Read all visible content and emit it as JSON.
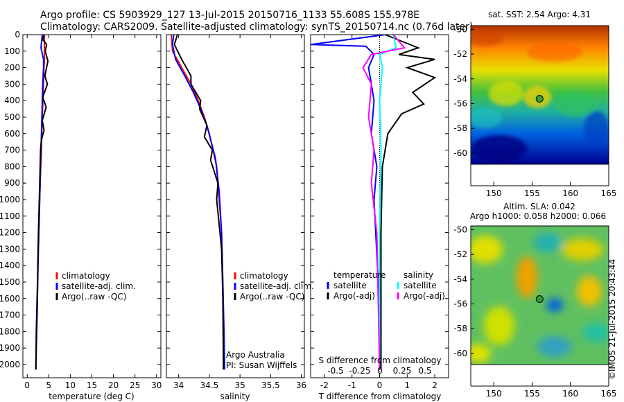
{
  "header": {
    "line1": "Argo profile: CS 5903929_127 13-Jul-2015 20150716_1133 55.608S 155.978E",
    "line2": "Climatology: CARS2009. Satellite-adjusted climatology: synTS_20150714.nc (0.76d later)"
  },
  "credit": "©IMOS 21-Jul-2015 20:43:44",
  "colors": {
    "climatology": "#ff0000",
    "satellite": "#0000ff",
    "argo": "#000000",
    "salinity_sat": "#00ffff",
    "salinity_argo": "#ff00ff"
  },
  "chart_data": [
    {
      "type": "line",
      "xlabel": "temperature (deg C)",
      "ylabel": "",
      "xlim": [
        -1,
        31
      ],
      "ylim": [
        2080,
        0
      ],
      "xticks": [
        0,
        5,
        10,
        15,
        20,
        25,
        30
      ],
      "yticks": [
        0,
        100,
        200,
        300,
        400,
        500,
        600,
        700,
        800,
        900,
        1000,
        1100,
        1200,
        1300,
        1400,
        1500,
        1600,
        1700,
        1800,
        1900,
        2000
      ],
      "legend": [
        "climatology",
        "satellite-adj. clim.",
        "Argo(..raw -QC)"
      ],
      "series": [
        {
          "name": "climatology",
          "color": "#ff0000",
          "x": [
            4.0,
            4.0,
            4.0,
            3.9,
            3.8,
            3.5,
            3.3,
            3.0,
            2.8,
            2.5,
            2.3,
            2.1,
            2.0
          ],
          "y": [
            0,
            100,
            150,
            200,
            300,
            500,
            700,
            900,
            1100,
            1400,
            1700,
            1900,
            2030
          ]
        },
        {
          "name": "satellite-adj. clim.",
          "color": "#0000ff",
          "x": [
            3.5,
            3.2,
            3.8,
            3.8,
            3.6,
            3.4,
            3.2,
            3.0,
            2.8,
            2.5,
            2.3,
            2.1,
            2.0
          ],
          "y": [
            0,
            80,
            150,
            200,
            300,
            500,
            700,
            900,
            1100,
            1400,
            1700,
            1900,
            2030
          ]
        },
        {
          "name": "Argo(..raw -QC)",
          "color": "#000000",
          "x": [
            3.9,
            3.6,
            4.5,
            4.2,
            4.8,
            4.1,
            4.7,
            3.6,
            4.4,
            3.5,
            3.9,
            3.3,
            3.1,
            2.9,
            2.6,
            2.4,
            2.1,
            2.0
          ],
          "y": [
            0,
            30,
            60,
            100,
            160,
            250,
            300,
            380,
            440,
            520,
            580,
            640,
            700,
            900,
            1200,
            1500,
            1800,
            2030
          ]
        }
      ]
    },
    {
      "type": "line",
      "xlabel": "salinity",
      "ylabel": "",
      "xlim": [
        33.8,
        36.05
      ],
      "ylim": [
        2080,
        0
      ],
      "xticks": [
        34,
        34.5,
        35,
        35.5,
        36
      ],
      "legend": [
        "climatology",
        "satellite-adj. clim.",
        "Argo(..raw -QC)"
      ],
      "annotations": [
        "Argo Australia",
        "PI: Susan Wijffels"
      ],
      "series": [
        {
          "name": "climatology",
          "color": "#ff0000",
          "x": [
            33.88,
            33.9,
            34.05,
            34.2,
            34.32,
            34.42,
            34.5,
            34.56,
            34.62,
            34.66,
            34.7,
            34.72,
            34.73,
            34.73
          ],
          "y": [
            0,
            100,
            200,
            300,
            400,
            500,
            600,
            700,
            800,
            1000,
            1200,
            1500,
            1800,
            2030
          ]
        },
        {
          "name": "satellite-adj. clim.",
          "color": "#0000ff",
          "x": [
            33.92,
            33.9,
            33.95,
            34.1,
            34.24,
            34.36,
            34.46,
            34.53,
            34.6,
            34.66,
            34.7,
            34.72,
            34.74,
            34.75
          ],
          "y": [
            0,
            60,
            150,
            250,
            350,
            450,
            550,
            650,
            750,
            950,
            1200,
            1500,
            1800,
            2030
          ]
        },
        {
          "name": "Argo(..raw -QC)",
          "color": "#000000",
          "x": [
            33.98,
            33.93,
            34.05,
            34.2,
            34.2,
            34.36,
            34.34,
            34.46,
            34.42,
            34.55,
            34.52,
            34.64,
            34.62,
            34.7,
            34.72,
            34.73
          ],
          "y": [
            0,
            60,
            150,
            250,
            300,
            400,
            450,
            550,
            620,
            700,
            760,
            900,
            1000,
            1300,
            1600,
            2030
          ]
        }
      ]
    },
    {
      "type": "line",
      "xlabel": "T difference from climatology",
      "xlabel2": "S difference from climatology",
      "xlim": [
        -2.5,
        2.5
      ],
      "ylim": [
        2080,
        0
      ],
      "xticks": [
        -2,
        -1,
        0,
        1,
        2
      ],
      "s_xticks": [
        "-0.5",
        "-0.25",
        "0",
        "0.25",
        "0.5"
      ],
      "legend_temperature": [
        "temperature",
        "satellite",
        "Argo(-adj)"
      ],
      "legend_salinity": [
        "salinity",
        "satellite",
        "Argo(-adj)"
      ],
      "series": [
        {
          "name": "temperature satellite",
          "color": "#0000ff",
          "x": [
            0.2,
            -2.5,
            -0.5,
            -0.2,
            -0.4,
            -0.2,
            -0.3,
            -0.1,
            -0.2,
            -0.05,
            0
          ],
          "y": [
            0,
            60,
            70,
            120,
            200,
            400,
            600,
            800,
            1000,
            1500,
            2030
          ]
        },
        {
          "name": "temperature Argo(-adj)",
          "color": "#000000",
          "x": [
            0.2,
            0.8,
            1.4,
            0.7,
            2.0,
            1.0,
            2.0,
            1.2,
            1.6,
            0.8,
            0.3,
            0.1,
            0.05,
            0.05
          ],
          "y": [
            0,
            40,
            80,
            120,
            150,
            200,
            260,
            350,
            420,
            480,
            600,
            800,
            1200,
            2030
          ]
        },
        {
          "name": "salinity satellite",
          "color": "#00ffff",
          "x": [
            0.5,
            0.6,
            0,
            0.1,
            0,
            0.05,
            0,
            0
          ],
          "y": [
            0,
            80,
            120,
            200,
            400,
            700,
            1200,
            2030
          ]
        },
        {
          "name": "salinity Argo(-adj)",
          "color": "#ff00ff",
          "x": [
            0.5,
            0.9,
            -0.3,
            -0.6,
            -0.3,
            -0.4,
            -0.2,
            -0.3,
            -0.1,
            0
          ],
          "y": [
            0,
            80,
            120,
            200,
            300,
            500,
            700,
            900,
            1200,
            2030
          ]
        }
      ]
    },
    {
      "type": "heatmap",
      "title": "sat. SST: 2.54 Argo: 4.31",
      "xlim": [
        147,
        165
      ],
      "ylim": [
        -60.9,
        -49.7
      ],
      "xticks": [
        150,
        155,
        160,
        165
      ],
      "yticks": [
        -50,
        -52,
        -54,
        -56,
        -58,
        -60
      ],
      "marker": {
        "lon": 155.978,
        "lat": -55.608
      }
    },
    {
      "type": "heatmap",
      "title": "Altim. SLA: 0.042",
      "subtitle": "Argo h1000: 0.058 h2000: 0.066",
      "xlim": [
        147,
        165
      ],
      "ylim": [
        -60.9,
        -49.7
      ],
      "xticks": [
        150,
        155,
        160,
        165
      ],
      "yticks": [
        -50,
        -52,
        -54,
        -56,
        -58,
        -60
      ],
      "marker": {
        "lon": 155.978,
        "lat": -55.608
      }
    }
  ]
}
